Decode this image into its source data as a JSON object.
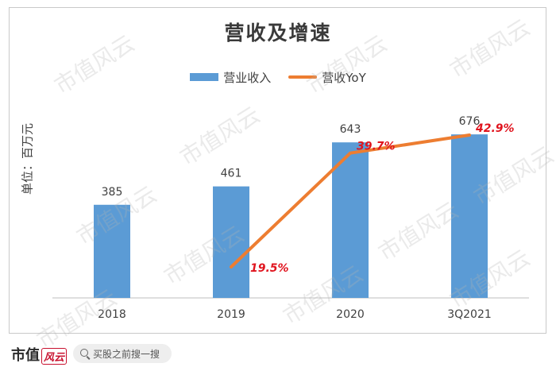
{
  "chart_data": {
    "type": "bar",
    "title": "营收及增速",
    "ylabel": "单位：百万元",
    "categories": [
      "2018",
      "2019",
      "2020",
      "3Q2021"
    ],
    "ylim": [
      0,
      800
    ],
    "series": [
      {
        "name": "营业收入",
        "type": "bar",
        "color": "#5b9bd5",
        "values": [
          385,
          461,
          643,
          676
        ],
        "labels": [
          "385",
          "461",
          "643",
          "676"
        ]
      },
      {
        "name": "营收YoY",
        "type": "line",
        "color": "#ed7d31",
        "values": [
          null,
          19.5,
          39.7,
          42.9
        ],
        "labels": [
          "",
          "19.5%",
          "39.7%",
          "42.9%"
        ]
      }
    ],
    "legend": "top-center",
    "grid": false
  },
  "footer": {
    "brand": "市值",
    "brand_mark": "风云",
    "search_text": "买股之前搜一搜",
    "search_icon": "search-icon"
  },
  "watermark_text": "市值风云"
}
